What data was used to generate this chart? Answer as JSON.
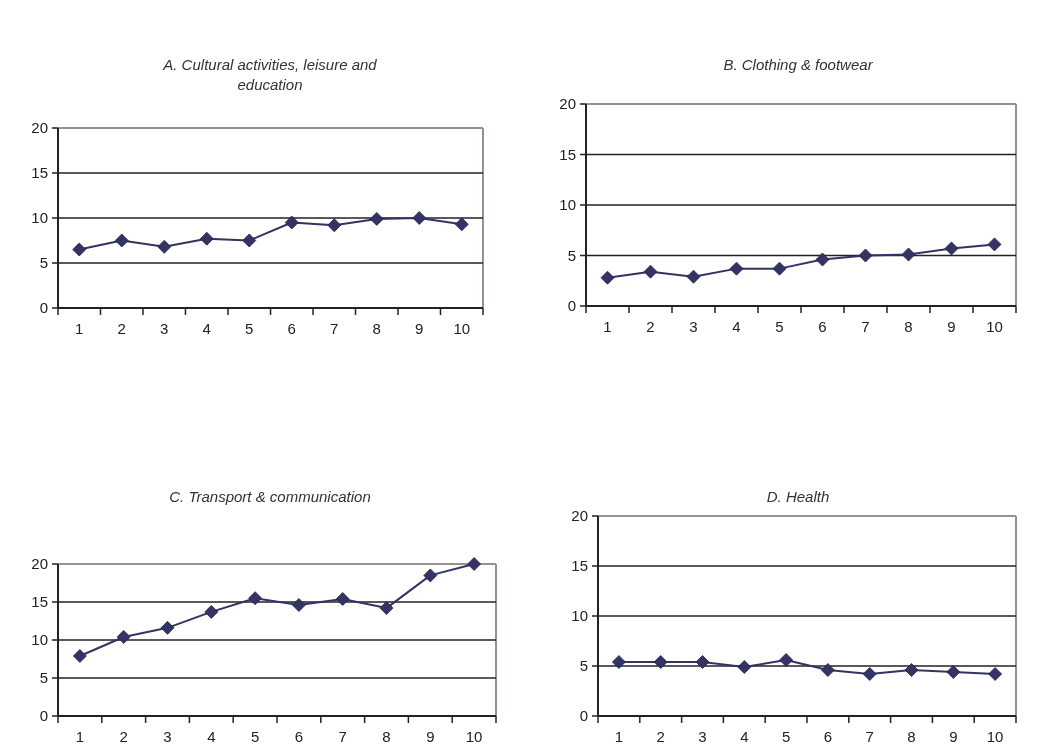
{
  "chart_data": [
    {
      "type": "line",
      "title": "A. Cultural activities, leisure and education",
      "categories": [
        "1",
        "2",
        "3",
        "4",
        "5",
        "6",
        "7",
        "8",
        "9",
        "10"
      ],
      "series": [
        {
          "color": "#333366",
          "values": [
            6.5,
            7.5,
            6.8,
            7.7,
            7.5,
            9.5,
            9.2,
            9.9,
            10.0,
            9.3
          ]
        }
      ],
      "ylim": [
        0,
        20
      ],
      "yticks": [
        0,
        5,
        10,
        15,
        20
      ],
      "grid": "y",
      "marker": "diamond"
    },
    {
      "type": "line",
      "title": "B. Clothing & footwear",
      "categories": [
        "1",
        "2",
        "3",
        "4",
        "5",
        "6",
        "7",
        "8",
        "9",
        "10"
      ],
      "series": [
        {
          "color": "#333366",
          "values": [
            2.8,
            3.4,
            2.9,
            3.7,
            3.7,
            4.6,
            5.0,
            5.1,
            5.7,
            6.1
          ]
        }
      ],
      "ylim": [
        0,
        20
      ],
      "yticks": [
        0,
        5,
        10,
        15,
        20
      ],
      "grid": "y",
      "marker": "diamond"
    },
    {
      "type": "line",
      "title": "C. Transport & communication",
      "categories": [
        "1",
        "2",
        "3",
        "4",
        "5",
        "6",
        "7",
        "8",
        "9",
        "10"
      ],
      "series": [
        {
          "color": "#333366",
          "values": [
            7.9,
            10.4,
            11.6,
            13.7,
            15.5,
            14.6,
            15.4,
            14.2,
            18.5,
            20
          ]
        }
      ],
      "ylim": [
        0,
        20
      ],
      "yticks": [
        0,
        5,
        10,
        15,
        20
      ],
      "grid": "y",
      "marker": "diamond"
    },
    {
      "type": "line",
      "title": "D. Health",
      "categories": [
        "1",
        "2",
        "3",
        "4",
        "5",
        "6",
        "7",
        "8",
        "9",
        "10"
      ],
      "series": [
        {
          "color": "#333366",
          "values": [
            5.4,
            5.4,
            5.4,
            4.9,
            5.6,
            4.6,
            4.2,
            4.6,
            4.4,
            4.2
          ]
        }
      ],
      "ylim": [
        0,
        20
      ],
      "yticks": [
        0,
        5,
        10,
        15,
        20
      ],
      "grid": "y",
      "marker": "diamond"
    }
  ]
}
